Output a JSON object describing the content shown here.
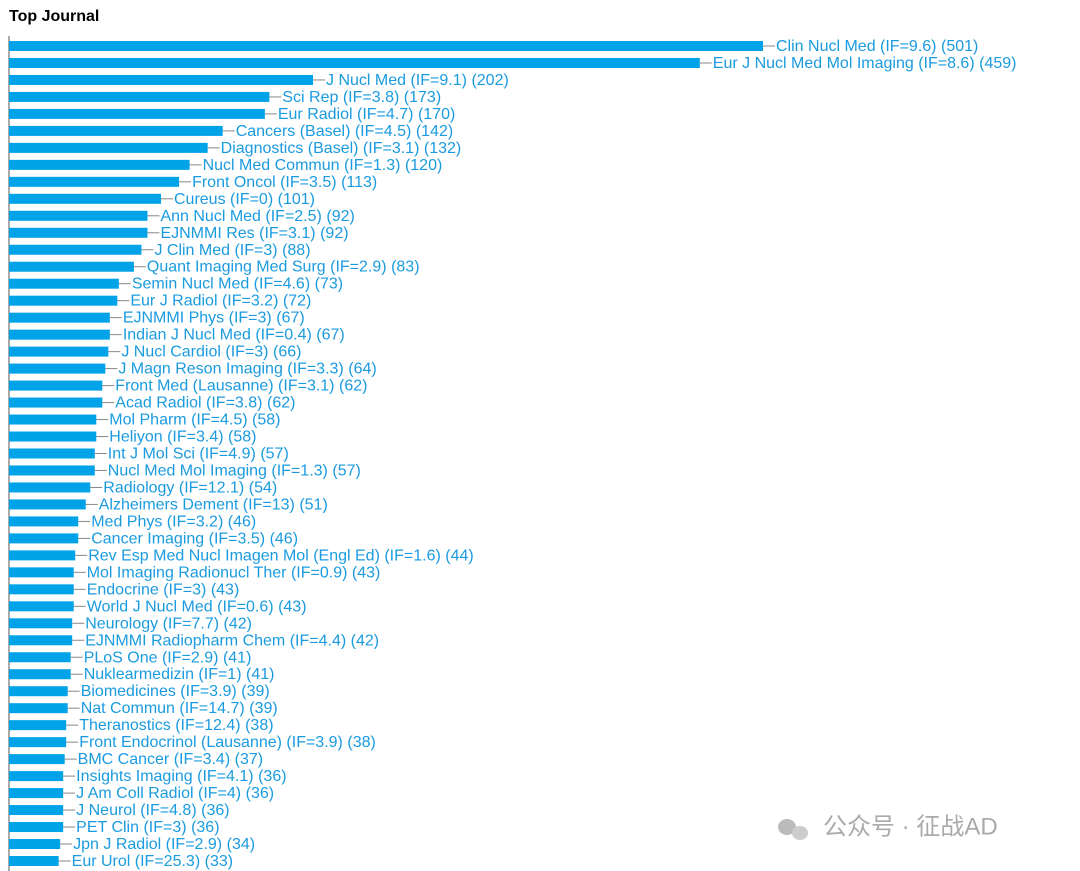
{
  "chart_data": {
    "type": "bar",
    "orientation": "horizontal",
    "title": "Top Journal",
    "color": "#00a2e8",
    "categories": [
      "Clin Nucl Med (IF=9.6)",
      "Eur J Nucl Med Mol Imaging (IF=8.6)",
      "J Nucl Med (IF=9.1)",
      "Sci Rep (IF=3.8)",
      "Eur Radiol (IF=4.7)",
      "Cancers (Basel) (IF=4.5)",
      "Diagnostics (Basel) (IF=3.1)",
      "Nucl Med Commun (IF=1.3)",
      "Front Oncol (IF=3.5)",
      "Cureus (IF=0)",
      "Ann Nucl Med (IF=2.5)",
      "EJNMMI Res (IF=3.1)",
      "J Clin Med (IF=3)",
      "Quant Imaging Med Surg (IF=2.9)",
      "Semin Nucl Med (IF=4.6)",
      "Eur J Radiol (IF=3.2)",
      "EJNMMI Phys (IF=3)",
      "Indian J Nucl Med (IF=0.4)",
      "J Nucl Cardiol (IF=3)",
      "J Magn Reson Imaging (IF=3.3)",
      "Front Med (Lausanne) (IF=3.1)",
      "Acad Radiol (IF=3.8)",
      "Mol Pharm (IF=4.5)",
      "Heliyon (IF=3.4)",
      "Int J Mol Sci (IF=4.9)",
      "Nucl Med Mol Imaging (IF=1.3)",
      "Radiology (IF=12.1)",
      "Alzheimers Dement (IF=13)",
      "Med Phys (IF=3.2)",
      "Cancer Imaging (IF=3.5)",
      "Rev Esp Med Nucl Imagen Mol (Engl Ed) (IF=1.6)",
      "Mol Imaging Radionucl Ther (IF=0.9)",
      "Endocrine (IF=3)",
      "World J Nucl Med (IF=0.6)",
      "Neurology (IF=7.7)",
      "EJNMMI Radiopharm Chem (IF=4.4)",
      "PLoS One (IF=2.9)",
      "Nuklearmedizin (IF=1)",
      "Biomedicines (IF=3.9)",
      "Nat Commun (IF=14.7)",
      "Theranostics (IF=12.4)",
      "Front Endocrinol (Lausanne) (IF=3.9)",
      "BMC Cancer (IF=3.4)",
      "Insights Imaging (IF=4.1)",
      "J Am Coll Radiol (IF=4)",
      "J Neurol (IF=4.8)",
      "PET Clin (IF=3)",
      "Jpn J Radiol (IF=2.9)",
      "Eur Urol (IF=25.3)"
    ],
    "values": [
      501,
      459,
      202,
      173,
      170,
      142,
      132,
      120,
      113,
      101,
      92,
      92,
      88,
      83,
      73,
      72,
      67,
      67,
      66,
      64,
      62,
      62,
      58,
      58,
      57,
      57,
      54,
      51,
      46,
      46,
      44,
      43,
      43,
      43,
      42,
      42,
      41,
      41,
      39,
      39,
      38,
      38,
      37,
      36,
      36,
      36,
      36,
      34,
      33
    ],
    "value_labels": [
      "(501)",
      "(459)",
      "(202)",
      "(173)",
      "(170)",
      "(142)",
      "(132)",
      "(120)",
      "(113)",
      "(101)",
      "(92)",
      "(92)",
      "(88)",
      "(83)",
      "(73)",
      "(72)",
      "(67)",
      "(67)",
      "(66)",
      "(64)",
      "(62)",
      "(62)",
      "(58)",
      "(58)",
      "(57)",
      "(57)",
      "(54)",
      "(51)",
      "(46)",
      "(46)",
      "(44)",
      "(43)",
      "(43)",
      "(43)",
      "(42)",
      "(42)",
      "(41)",
      "(41)",
      "(39)",
      "(39)",
      "(38)",
      "(38)",
      "(37)",
      "(36)",
      "(36)",
      "(36)",
      "(36)",
      "(34)",
      "(33)"
    ]
  },
  "watermark": "公众号 · 征战AD"
}
